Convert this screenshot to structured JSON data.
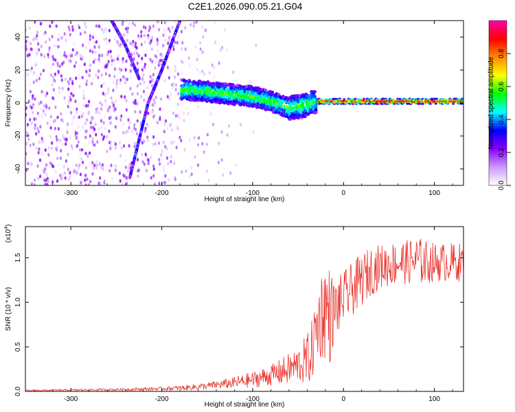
{
  "figure": {
    "title": "C2E1.2026.090.05.21.G04"
  },
  "chart_data": [
    {
      "type": "heatmap",
      "name": "spectrogram",
      "xlabel": "Height of straight line (km)",
      "ylabel": "Frequency (Hz)",
      "xlim": [
        -350,
        132
      ],
      "ylim": [
        -50,
        50
      ],
      "x_ticks": [
        -300,
        -200,
        -100,
        0,
        100
      ],
      "x_tick_labels": [
        "-300",
        "-200",
        "-100",
        "0",
        "100"
      ],
      "y_ticks": [
        -40,
        -20,
        0,
        20,
        40
      ],
      "y_tick_labels": [
        "-40",
        "-20",
        "0",
        "20",
        "40"
      ],
      "colorbar": {
        "label": "Normalized spectral amplitude",
        "range": [
          0,
          1
        ],
        "ticks": [
          0.0,
          0.2,
          0.4,
          0.6,
          0.8
        ],
        "tick_labels": [
          "0.0",
          "0.2",
          "0.4",
          "0.6",
          "0.8"
        ],
        "colors": [
          "#ffffff",
          "#cc99ff",
          "#8800ff",
          "#0000ff",
          "#00ffff",
          "#00ff00",
          "#ffff00",
          "#ff8800",
          "#ff0000",
          "#ff00aa"
        ]
      },
      "features": {
        "signal_track": [
          [
            -175,
            8
          ],
          [
            -150,
            7
          ],
          [
            -120,
            5
          ],
          [
            -100,
            4
          ],
          [
            -80,
            1
          ],
          [
            -60,
            -3
          ],
          [
            -45,
            -2
          ],
          [
            -30,
            1
          ],
          [
            0,
            1
          ],
          [
            50,
            1
          ],
          [
            132,
            1
          ]
        ],
        "diagonal_streak_1": [
          [
            -255,
            50
          ],
          [
            -240,
            35
          ],
          [
            -225,
            15
          ]
        ],
        "diagonal_streak_2": [
          [
            -180,
            50
          ],
          [
            -200,
            20
          ],
          [
            -215,
            0
          ],
          [
            -235,
            -45
          ]
        ]
      }
    },
    {
      "type": "line",
      "name": "snr",
      "xlabel": "Height of straight line (km)",
      "ylabel": "SNR (10 * v/v)",
      "y_multiplier": "(x10^4)",
      "y_multiplier_base": "(x10",
      "y_multiplier_exp": "4",
      "xlim": [
        -350,
        132
      ],
      "ylim": [
        0,
        1.85
      ],
      "x_ticks": [
        -300,
        -200,
        -100,
        0,
        100
      ],
      "x_tick_labels": [
        "-300",
        "-200",
        "-100",
        "0",
        "100"
      ],
      "y_ticks": [
        0.0,
        0.5,
        1.0,
        1.5
      ],
      "y_tick_labels": [
        "0.0",
        "0.5",
        "1.0",
        "1.5"
      ],
      "color": "#e8302a",
      "x": [
        -350,
        -300,
        -250,
        -200,
        -175,
        -150,
        -125,
        -100,
        -80,
        -60,
        -50,
        -40,
        -35,
        -30,
        -25,
        -20,
        -15,
        -10,
        0,
        10,
        20,
        30,
        40,
        50,
        60,
        70,
        80,
        90,
        100,
        110,
        120,
        132
      ],
      "values": [
        0.01,
        0.015,
        0.02,
        0.03,
        0.04,
        0.06,
        0.09,
        0.13,
        0.18,
        0.25,
        0.3,
        0.35,
        0.45,
        0.7,
        0.85,
        0.95,
        0.85,
        0.9,
        1.05,
        1.15,
        1.25,
        1.35,
        1.4,
        1.42,
        1.45,
        1.45,
        1.47,
        1.45,
        1.45,
        1.45,
        1.45,
        1.45
      ],
      "noise_amplitude": [
        0.008,
        0.01,
        0.015,
        0.02,
        0.03,
        0.04,
        0.06,
        0.09,
        0.12,
        0.18,
        0.2,
        0.3,
        0.35,
        0.4,
        0.5,
        0.6,
        0.55,
        0.35,
        0.3,
        0.3,
        0.3,
        0.28,
        0.25,
        0.25,
        0.25,
        0.25,
        0.28,
        0.25,
        0.22,
        0.22,
        0.22,
        0.22
      ]
    }
  ]
}
